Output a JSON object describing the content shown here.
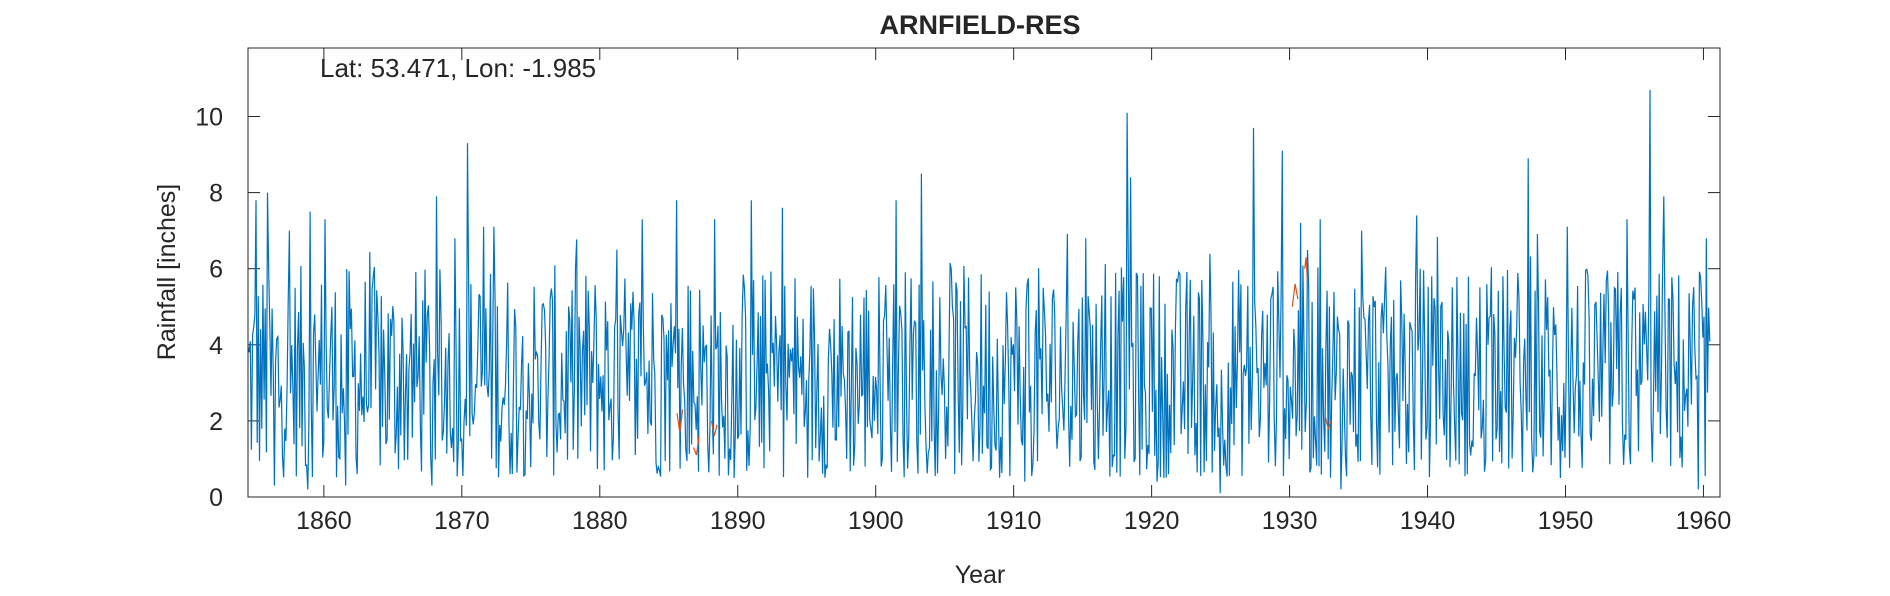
{
  "chart_data": {
    "type": "line",
    "title": "ARNFIELD-RES",
    "annotation": "Lat: 53.471, Lon: -1.985",
    "xlabel": "Year",
    "ylabel": "Rainfall [inches]",
    "xlim": [
      1854.5,
      1961.2
    ],
    "ylim": [
      0,
      11.8
    ],
    "xticks": [
      1860,
      1870,
      1880,
      1890,
      1900,
      1910,
      1920,
      1930,
      1940,
      1950,
      1960
    ],
    "yticks": [
      0,
      2,
      4,
      6,
      8,
      10
    ],
    "grid": false,
    "legend": "none",
    "sampling": "monthly",
    "series": [
      {
        "color": "#0072bd",
        "x_start": 1854.5,
        "x_step": 0.0833,
        "peaks": [
          [
            1855.1,
            7.8
          ],
          [
            1855.9,
            8.0
          ],
          [
            1857.5,
            7.0
          ],
          [
            1859.0,
            7.5
          ],
          [
            1860.1,
            7.3
          ],
          [
            1868.2,
            7.9
          ],
          [
            1869.5,
            6.8
          ],
          [
            1870.4,
            9.3
          ],
          [
            1871.6,
            7.1
          ],
          [
            1872.3,
            7.1
          ],
          [
            1881.2,
            6.5
          ],
          [
            1883.1,
            7.3
          ],
          [
            1885.6,
            7.8
          ],
          [
            1888.3,
            7.3
          ],
          [
            1891.0,
            7.8
          ],
          [
            1893.2,
            7.6
          ],
          [
            1901.5,
            7.8
          ],
          [
            1903.3,
            8.5
          ],
          [
            1915.2,
            6.8
          ],
          [
            1918.2,
            10.1
          ],
          [
            1918.5,
            8.4
          ],
          [
            1927.4,
            9.7
          ],
          [
            1929.5,
            9.1
          ],
          [
            1930.8,
            7.2
          ],
          [
            1932.2,
            7.3
          ],
          [
            1935.2,
            7.0
          ],
          [
            1939.2,
            7.4
          ],
          [
            1947.3,
            8.9
          ],
          [
            1950.1,
            7.1
          ],
          [
            1954.5,
            7.3
          ],
          [
            1956.1,
            10.7
          ],
          [
            1957.1,
            7.9
          ],
          [
            1960.2,
            6.8
          ]
        ],
        "troughs": [
          [
            1856.4,
            0.3
          ],
          [
            1858.8,
            0.2
          ],
          [
            1861.6,
            0.3
          ],
          [
            1867.8,
            0.3
          ],
          [
            1873.5,
            0.6
          ],
          [
            1889.7,
            0.5
          ],
          [
            1910.8,
            0.4
          ],
          [
            1920.4,
            0.4
          ],
          [
            1925.0,
            0.1
          ],
          [
            1933.7,
            0.2
          ],
          [
            1942.9,
            0.6
          ],
          [
            1949.6,
            0.5
          ],
          [
            1959.6,
            0.2
          ]
        ],
        "mean": 3.2
      },
      {
        "color": "#d95319",
        "segments": [
          [
            [
              1885.6,
              2.2
            ],
            [
              1885.8,
              1.7
            ],
            [
              1886.0,
              2.3
            ]
          ],
          [
            [
              1886.8,
              1.3
            ],
            [
              1887.0,
              1.1
            ],
            [
              1887.2,
              1.6
            ]
          ],
          [
            [
              1888.1,
              2.0
            ],
            [
              1888.3,
              1.6
            ],
            [
              1888.5,
              1.9
            ]
          ],
          [
            [
              1930.2,
              5.0
            ],
            [
              1930.4,
              5.6
            ],
            [
              1930.6,
              5.2
            ]
          ],
          [
            [
              1931.1,
              6.0
            ],
            [
              1931.2,
              6.3
            ],
            [
              1931.3,
              5.6
            ]
          ],
          [
            [
              1932.6,
              2.1
            ],
            [
              1932.8,
              1.8
            ],
            [
              1933.0,
              2.0
            ]
          ]
        ]
      }
    ]
  }
}
